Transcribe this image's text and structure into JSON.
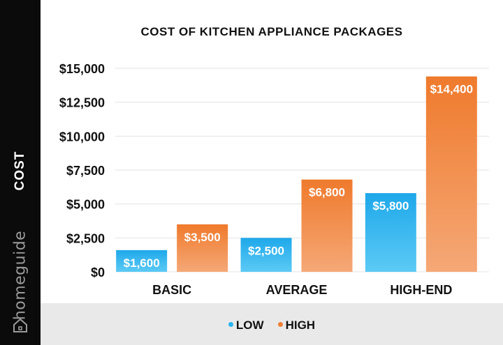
{
  "sidebar": {
    "ylabel": "COST",
    "brand": "homeguide",
    "brand_icon": "house-icon"
  },
  "chart_data": {
    "type": "bar",
    "title": "COST OF KITCHEN APPLIANCE PACKAGES",
    "xlabel": "",
    "ylabel": "COST",
    "categories": [
      "BASIC",
      "AVERAGE",
      "HIGH-END"
    ],
    "series": [
      {
        "name": "LOW",
        "values": [
          1600,
          2500,
          5800
        ],
        "labels": [
          "$1,600",
          "$2,500",
          "$5,800"
        ],
        "color": "#29b6f0"
      },
      {
        "name": "HIGH",
        "values": [
          3500,
          6800,
          14400
        ],
        "labels": [
          "$3,500",
          "$6,800",
          "$14,400"
        ],
        "color": "#f07f34"
      }
    ],
    "ylim": [
      0,
      15000
    ],
    "yticks": [
      0,
      2500,
      5000,
      7500,
      10000,
      12500,
      15000
    ],
    "ytick_labels": [
      "$0",
      "$2,500",
      "$5,000",
      "$7,500",
      "$10,000",
      "$12,500",
      "$15,000"
    ],
    "grid": true,
    "legend_position": "bottom"
  }
}
